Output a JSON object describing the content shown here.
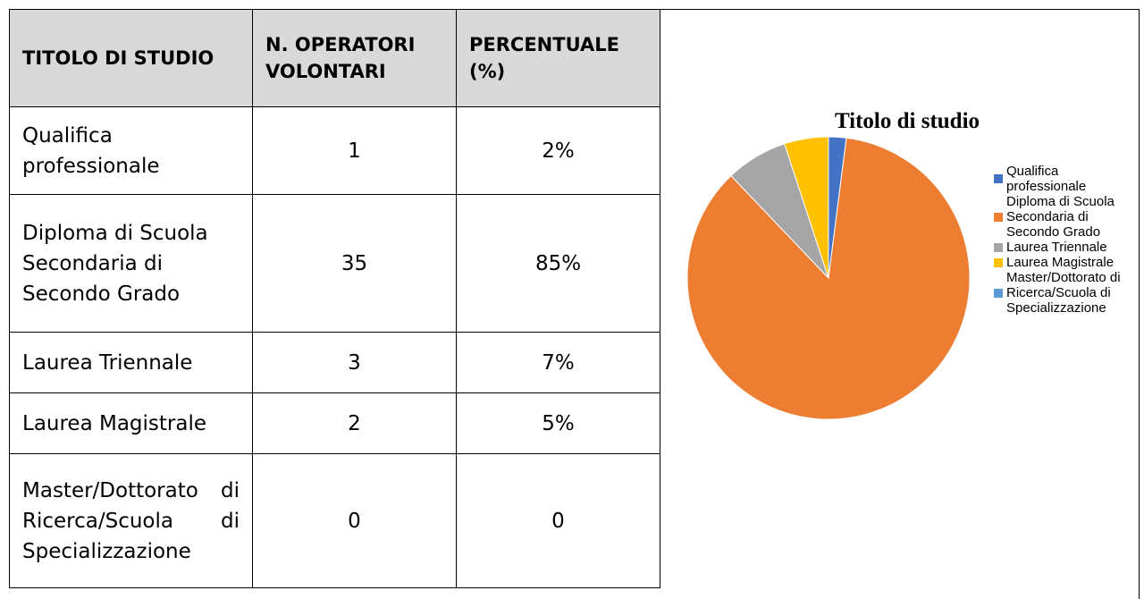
{
  "table": {
    "header": [
      "TITOLO DI STUDIO",
      "N. OPERATORI VOLONTARI",
      "PERCENTUALE (%)"
    ],
    "rows": [
      [
        "Qualifica professionale",
        "1",
        "2%"
      ],
      [
        "Diploma di Scuola Secondaria di Secondo Grado",
        "35",
        "85%"
      ],
      [
        "Laurea Triennale",
        "3",
        "7%"
      ],
      [
        "Laurea Magistrale",
        "2",
        "5%"
      ],
      [
        "Master/Dottorato di Ricerca/Scuola di Specializzazione",
        "0",
        "0"
      ]
    ]
  },
  "chart_data": {
    "type": "pie",
    "title": "Titolo di studio",
    "categories": [
      "Qualifica professionale",
      "Diploma di Scuola Secondaria di Secondo Grado",
      "Laurea Triennale",
      "Laurea Magistrale",
      "Master/Dottorato di Ricerca/Scuola di Specializzazione"
    ],
    "values": [
      2,
      85,
      7,
      5,
      0
    ],
    "colors": [
      "#4472c4",
      "#ed7d31",
      "#a5a5a5",
      "#ffc000",
      "#5b9bd5"
    ],
    "legend": "right"
  }
}
